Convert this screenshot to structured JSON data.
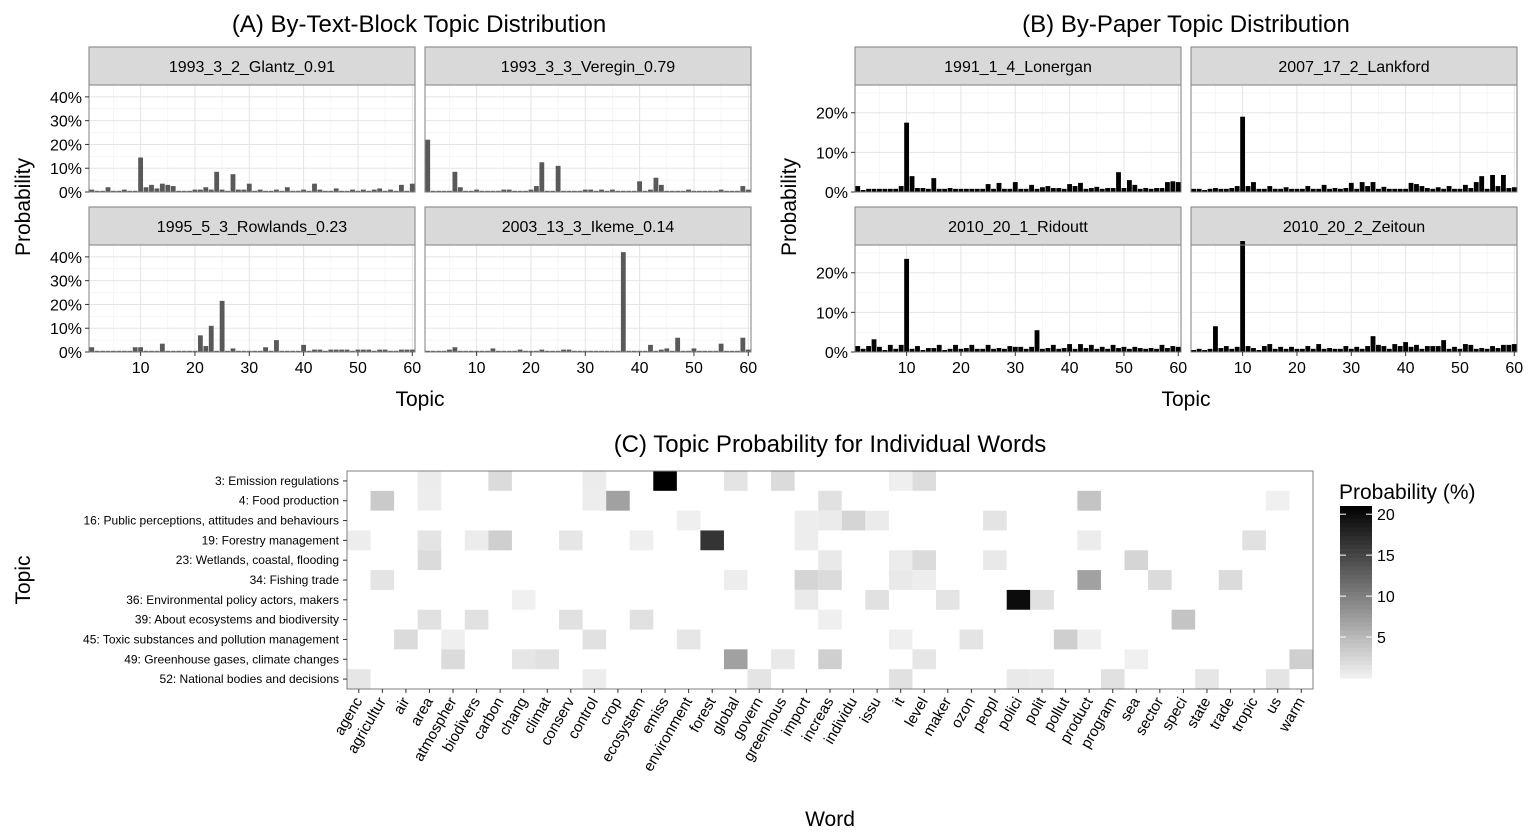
{
  "figure": {
    "title_a": "(A) By-Text-Block Topic Distribution",
    "title_b": "(B) By-Paper Topic Distribution",
    "title_c": "(C) Topic Probability for Individual Words"
  },
  "chart_data": [
    {
      "id": "A",
      "type": "bar",
      "title": "(A) By-Text-Block Topic Distribution",
      "xlabel": "Topic",
      "ylabel": "Probability",
      "xlim": [
        1,
        60
      ],
      "ylim": [
        0,
        45
      ],
      "yticks": [
        0,
        10,
        20,
        30,
        40
      ],
      "ytick_labels": [
        "0%",
        "10%",
        "20%",
        "30%",
        "40%"
      ],
      "xticks": [
        10,
        20,
        30,
        40,
        50,
        60
      ],
      "bar_color": "#595959",
      "facets": [
        {
          "label": "1993_3_2_Glantz_0.91",
          "values": [
            1,
            0.5,
            0.5,
            2,
            0.5,
            0.5,
            1,
            0.5,
            0.5,
            14.5,
            2,
            3,
            1.5,
            3.5,
            3,
            2.5,
            0.5,
            0.5,
            0.5,
            1,
            1,
            2,
            1,
            8.5,
            1,
            0.5,
            7.5,
            1,
            1,
            3.5,
            0.5,
            1,
            0.5,
            0.5,
            1,
            0.5,
            2,
            0.5,
            0.5,
            1,
            0.5,
            3.5,
            1,
            0.5,
            0.5,
            1.5,
            0.5,
            0.5,
            1,
            0.5,
            1,
            0.5,
            1,
            1.5,
            0.5,
            1,
            0.5,
            3,
            0.5,
            3.5
          ]
        },
        {
          "label": "1993_3_3_Veregin_0.79",
          "values": [
            22,
            0.5,
            0.5,
            0.5,
            0.5,
            8.5,
            2,
            0.5,
            0.5,
            1,
            0.5,
            0.5,
            0.5,
            0.5,
            1,
            1,
            0.5,
            0.5,
            0.5,
            1,
            2.5,
            12.5,
            0.5,
            0.5,
            11,
            0.5,
            0.5,
            0.5,
            0.5,
            1,
            1,
            0.5,
            1,
            0.5,
            1,
            0.5,
            0.5,
            0.5,
            0.5,
            4.5,
            0.5,
            1,
            6,
            3,
            0.5,
            0.5,
            0.5,
            0.5,
            1,
            0.5,
            0.5,
            0.5,
            0.5,
            0.5,
            1,
            0.5,
            0.5,
            0.5,
            2.5,
            1
          ]
        },
        {
          "label": "1995_5_3_Rowlands_0.23",
          "values": [
            2,
            0.5,
            0.5,
            0.5,
            0.5,
            0.5,
            0.5,
            0.5,
            2,
            2,
            0.5,
            0.5,
            0.5,
            3.5,
            0.5,
            0.5,
            0.5,
            0.5,
            0.5,
            0.5,
            7,
            2.5,
            11,
            0.5,
            21.5,
            0.5,
            1.5,
            0.5,
            0.5,
            0.5,
            0.5,
            0.5,
            2,
            0.5,
            5,
            0.5,
            0.5,
            0.5,
            0.5,
            3,
            0.5,
            1,
            1,
            0.5,
            1,
            1,
            1,
            1,
            0.5,
            1,
            1,
            1,
            0.5,
            1,
            1,
            0.5,
            0.5,
            1,
            1,
            1
          ]
        },
        {
          "label": "2003_13_3_Ikeme_0.14",
          "values": [
            0.5,
            0.5,
            0.5,
            0.5,
            1,
            2,
            0.5,
            0.5,
            0.5,
            0.5,
            0.5,
            0.5,
            1.5,
            0.5,
            0.5,
            0.5,
            0.5,
            1,
            0.5,
            0.5,
            0.5,
            1,
            0.5,
            0.5,
            0.5,
            1,
            1,
            0.5,
            0.5,
            0.5,
            0.5,
            0.5,
            0.5,
            0.5,
            0.5,
            0.5,
            42,
            0.5,
            0.5,
            0.5,
            0.5,
            3,
            0.5,
            1,
            1.5,
            0.5,
            6,
            0.5,
            0.5,
            1.5,
            0.5,
            0.5,
            0.5,
            0.5,
            3.5,
            0.5,
            0.5,
            0.5,
            6,
            1
          ]
        }
      ]
    },
    {
      "id": "B",
      "type": "bar",
      "title": "(B) By-Paper Topic Distribution",
      "xlabel": "Topic",
      "ylabel": "Probability",
      "xlim": [
        1,
        60
      ],
      "ylim": [
        0,
        27
      ],
      "yticks": [
        0,
        10,
        20
      ],
      "ytick_labels": [
        "0%",
        "10%",
        "20%"
      ],
      "xticks": [
        10,
        20,
        30,
        40,
        50,
        60
      ],
      "bar_color": "#000000",
      "facets": [
        {
          "label": "1991_1_4_Lonergan",
          "values": [
            1.5,
            0.5,
            0.8,
            0.8,
            0.8,
            0.8,
            0.8,
            0.8,
            1.5,
            17.5,
            4,
            1,
            1,
            0.8,
            3.5,
            0.8,
            0.8,
            1,
            0.8,
            0.8,
            0.8,
            0.8,
            0.8,
            0.8,
            2,
            0.8,
            2.3,
            0.8,
            0.8,
            2.5,
            0.8,
            0.8,
            1.8,
            0.8,
            1.2,
            1.5,
            1,
            1,
            0.8,
            2,
            1.5,
            2.3,
            0.8,
            1,
            1.3,
            0.8,
            1,
            1,
            5,
            1,
            3,
            1.8,
            0.8,
            1,
            0.8,
            1,
            1,
            2.5,
            2.7,
            2.5
          ]
        },
        {
          "label": "2007_17_2_Lankford",
          "values": [
            0.8,
            0.8,
            0.5,
            0.8,
            1,
            0.8,
            0.8,
            1,
            1.5,
            19,
            1.5,
            2.5,
            0.8,
            0.8,
            1.5,
            0.8,
            0.8,
            1.2,
            0.8,
            0.8,
            0.8,
            1.5,
            0.8,
            0.8,
            1.8,
            0.8,
            1,
            0.8,
            1,
            2.3,
            0.8,
            2.5,
            1.5,
            2.5,
            0.8,
            1.3,
            0.8,
            0.8,
            0.8,
            0.8,
            2.3,
            2,
            1.5,
            1,
            0.8,
            1.2,
            0.8,
            1.5,
            0.8,
            0.8,
            1.8,
            1,
            2.5,
            4,
            0.8,
            4.3,
            1.5,
            4.3,
            1,
            1.2
          ]
        },
        {
          "label": "2010_20_1_Ridoutt",
          "values": [
            1.5,
            0.8,
            1.5,
            3.2,
            1.3,
            0.5,
            1.8,
            0.8,
            1.8,
            23.5,
            0.8,
            1.5,
            0.5,
            1,
            1,
            1.8,
            0.5,
            0.8,
            1.8,
            0.8,
            1,
            1.8,
            0.8,
            0.8,
            1.8,
            0.8,
            1,
            0.8,
            1.5,
            1.3,
            1.3,
            0.8,
            1.3,
            5.5,
            0.8,
            1,
            1.8,
            0.8,
            1,
            2,
            0.8,
            2,
            1,
            1.8,
            0.8,
            1.3,
            0.8,
            1.8,
            1,
            1.3,
            0.8,
            1.3,
            1,
            0.8,
            1,
            0.8,
            1.8,
            1,
            1.5,
            1.3
          ]
        },
        {
          "label": "2010_20_2_Zeitoun",
          "values": [
            0.5,
            0.8,
            0.5,
            0.8,
            6.5,
            1,
            1.5,
            0.8,
            1.3,
            28,
            1.5,
            1,
            0.5,
            1.5,
            2,
            0.8,
            1.3,
            0.8,
            1.3,
            0.8,
            0.8,
            1.5,
            0.8,
            2,
            0.8,
            1,
            0.8,
            0.8,
            1.5,
            0.8,
            1.3,
            0.8,
            1.5,
            4,
            1.8,
            1.5,
            0.8,
            2,
            1.5,
            2.5,
            1.3,
            1.8,
            0.8,
            1.5,
            1.5,
            1.5,
            3,
            0.8,
            1.3,
            0.8,
            2,
            1.8,
            0.8,
            1,
            0.8,
            1.5,
            1,
            1.8,
            1.8,
            2
          ]
        }
      ]
    },
    {
      "id": "C",
      "type": "heatmap",
      "title": "(C) Topic Probability for Individual Words",
      "xlabel": "Word",
      "ylabel": "Topic",
      "x": [
        "agenc",
        "agricultur",
        "air",
        "area",
        "atmospher",
        "biodivers",
        "carbon",
        "chang",
        "climat",
        "conserv",
        "control",
        "crop",
        "ecosystem",
        "emiss",
        "environment",
        "forest",
        "global",
        "govern",
        "greenhous",
        "import",
        "increas",
        "individu",
        "issu",
        "it",
        "level",
        "maker",
        "ozon",
        "peopl",
        "polici",
        "polit",
        "pollut",
        "product",
        "program",
        "sea",
        "sector",
        "speci",
        "state",
        "trade",
        "tropic",
        "us",
        "warm"
      ],
      "y": [
        "3: Emission regulations",
        "4: Food production",
        "16: Public perceptions, attitudes and behaviours",
        "19: Forestry management",
        "23: Wetlands, coastal, flooding",
        "34: Fishing trade",
        "36: Environmental policy actors, makers",
        "39: About ecosystems and biodiversity",
        "45: Toxic substances and pollution management",
        "49: Greenhouse gases, climate changes",
        "52: National bodies and decisions"
      ],
      "cells": [
        [
          0,
          3,
          0.5
        ],
        [
          0,
          6,
          2
        ],
        [
          0,
          10,
          0.5
        ],
        [
          0,
          13,
          21
        ],
        [
          0,
          16,
          1.2
        ],
        [
          0,
          18,
          2
        ],
        [
          0,
          23,
          0.3
        ],
        [
          0,
          24,
          1.8
        ],
        [
          1,
          1,
          3.5
        ],
        [
          1,
          3,
          0.4
        ],
        [
          1,
          10,
          0.4
        ],
        [
          1,
          11,
          7
        ],
        [
          1,
          20,
          1.5
        ],
        [
          1,
          31,
          4
        ],
        [
          1,
          39,
          0.2
        ],
        [
          2,
          14,
          0.3
        ],
        [
          2,
          19,
          0.4
        ],
        [
          2,
          20,
          0.6
        ],
        [
          2,
          21,
          2.5
        ],
        [
          2,
          22,
          0.6
        ],
        [
          2,
          27,
          1.2
        ],
        [
          3,
          0,
          0.4
        ],
        [
          3,
          3,
          1.2
        ],
        [
          3,
          5,
          0.5
        ],
        [
          3,
          6,
          3
        ],
        [
          3,
          9,
          1
        ],
        [
          3,
          12,
          0.3
        ],
        [
          3,
          15,
          16.5
        ],
        [
          3,
          19,
          0.4
        ],
        [
          3,
          31,
          0.5
        ],
        [
          3,
          38,
          1.5
        ],
        [
          4,
          3,
          2
        ],
        [
          4,
          20,
          0.8
        ],
        [
          4,
          23,
          0.5
        ],
        [
          4,
          24,
          2
        ],
        [
          4,
          27,
          0.8
        ],
        [
          4,
          33,
          2.5
        ],
        [
          5,
          1,
          1.2
        ],
        [
          5,
          16,
          0.4
        ],
        [
          5,
          19,
          2.5
        ],
        [
          5,
          20,
          2
        ],
        [
          5,
          23,
          0.8
        ],
        [
          5,
          24,
          0.4
        ],
        [
          5,
          31,
          7
        ],
        [
          5,
          34,
          2
        ],
        [
          5,
          37,
          2
        ],
        [
          6,
          7,
          0.2
        ],
        [
          6,
          19,
          0.7
        ],
        [
          6,
          22,
          1.5
        ],
        [
          6,
          25,
          1.2
        ],
        [
          6,
          28,
          20
        ],
        [
          6,
          29,
          1.5
        ],
        [
          7,
          3,
          1.5
        ],
        [
          7,
          5,
          1.5
        ],
        [
          7,
          9,
          1.5
        ],
        [
          7,
          12,
          1.5
        ],
        [
          7,
          20,
          0.3
        ],
        [
          7,
          35,
          4
        ],
        [
          8,
          2,
          2
        ],
        [
          8,
          4,
          0.3
        ],
        [
          8,
          10,
          1.5
        ],
        [
          8,
          14,
          1
        ],
        [
          8,
          23,
          0.3
        ],
        [
          8,
          26,
          1.2
        ],
        [
          8,
          30,
          3
        ],
        [
          8,
          31,
          0.3
        ],
        [
          9,
          4,
          2
        ],
        [
          9,
          7,
          1
        ],
        [
          9,
          8,
          1.5
        ],
        [
          9,
          16,
          7
        ],
        [
          9,
          18,
          0.8
        ],
        [
          9,
          20,
          3
        ],
        [
          9,
          24,
          1
        ],
        [
          9,
          33,
          0.2
        ],
        [
          9,
          40,
          3
        ],
        [
          10,
          0,
          1
        ],
        [
          10,
          10,
          0.4
        ],
        [
          10,
          17,
          1.2
        ],
        [
          10,
          23,
          1.5
        ],
        [
          10,
          28,
          0.8
        ],
        [
          10,
          29,
          0.6
        ],
        [
          10,
          32,
          1.5
        ],
        [
          10,
          36,
          1
        ],
        [
          10,
          39,
          1.2
        ]
      ],
      "colorbar": {
        "title": "Probability (%)",
        "ticks": [
          5,
          10,
          15,
          20
        ],
        "range": [
          0,
          21
        ],
        "low_color": "#ffffff",
        "high_color": "#000000"
      }
    }
  ]
}
